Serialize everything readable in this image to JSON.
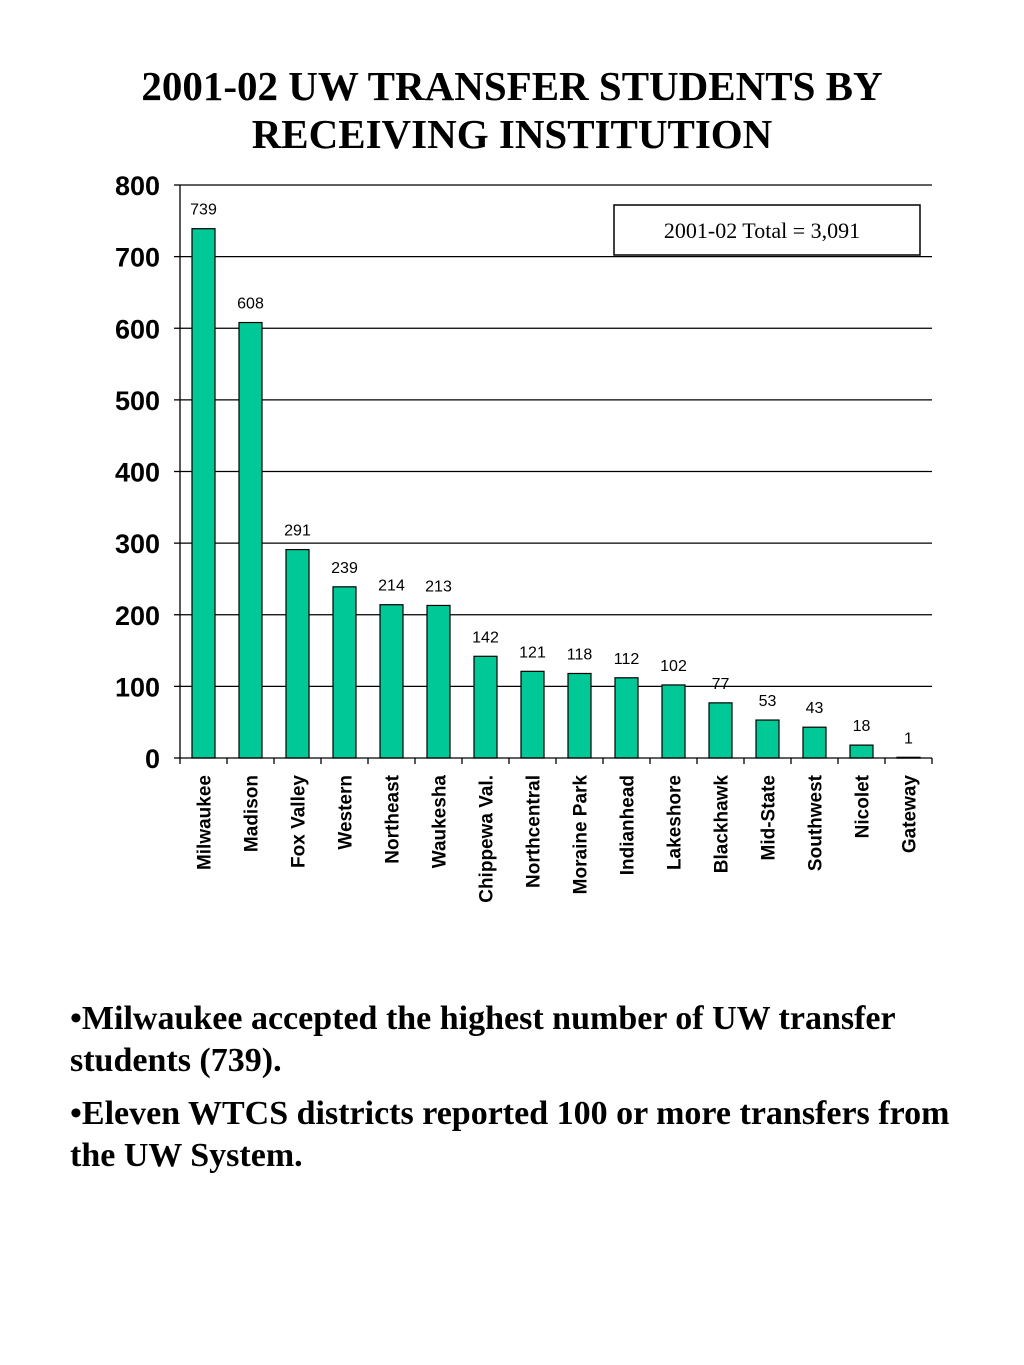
{
  "title": "2001-02 UW TRANSFER STUDENTS BY RECEIVING INSTITUTION",
  "chart_data": {
    "type": "bar",
    "title": "2001-02 UW TRANSFER STUDENTS BY RECEIVING INSTITUTION",
    "xlabel": "",
    "ylabel": "",
    "ylim": [
      0,
      800
    ],
    "yticks": [
      0,
      100,
      200,
      300,
      400,
      500,
      600,
      700,
      800
    ],
    "grid": true,
    "categories": [
      "Milwaukee",
      "Madison",
      "Fox Valley",
      "Western",
      "Northeast",
      "Waukesha",
      "Chippewa Val.",
      "Northcentral",
      "Moraine Park",
      "Indianhead",
      "Lakeshore",
      "Blackhawk",
      "Mid-State",
      "Southwest",
      "Nicolet",
      "Gateway"
    ],
    "values": [
      739,
      608,
      291,
      239,
      214,
      213,
      142,
      121,
      118,
      112,
      102,
      77,
      53,
      43,
      18,
      1
    ],
    "annotation": "2001-02 Total = 3,091",
    "colors": {
      "bar": "#00c896",
      "bar_stroke": "#000000",
      "grid": "#000000"
    }
  },
  "bullets": [
    "•Milwaukee accepted the highest number of UW transfer students (739).",
    "•Eleven WTCS districts reported 100 or more transfers from the UW System."
  ]
}
